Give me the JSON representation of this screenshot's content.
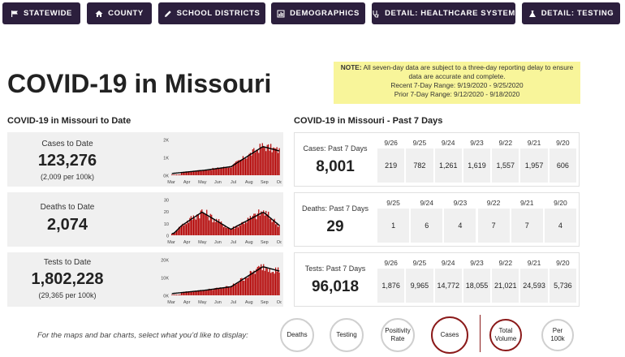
{
  "nav": [
    {
      "label": "STATEWIDE",
      "icon": "flag-icon"
    },
    {
      "label": "COUNTY",
      "icon": "home-icon"
    },
    {
      "label": "SCHOOL DISTRICTS",
      "icon": "pencil-icon"
    },
    {
      "label": "DEMOGRAPHICS",
      "icon": "bar-chart-icon"
    },
    {
      "label": "DETAIL: HEALTHCARE SYSTEM",
      "icon": "stethoscope-icon"
    },
    {
      "label": "DETAIL: TESTING",
      "icon": "flask-icon"
    }
  ],
  "note": {
    "prefix": "NOTE:",
    "line1": " All seven-day data are subject to a three-day reporting delay to ensure",
    "line2": "data are accurate and complete.",
    "line3": "Recent 7-Day Range: 9/19/2020 -  9/25/2020",
    "line4": "Prior 7-Day Range:  9/12/2020 - 9/18/2020"
  },
  "title": "COVID-19 in Missouri",
  "todate": {
    "heading": "COVID-19 in Missouri to Date",
    "cards": [
      {
        "label": "Cases to Date",
        "value": "123,276",
        "sub": "(2,009 per 100k)",
        "yticks": [
          "2K",
          "1K",
          "0K"
        ],
        "ymax": 2000,
        "peak": 1.0
      },
      {
        "label": "Deaths to Date",
        "value": "2,074",
        "sub": "",
        "yticks": [
          "30",
          "20",
          "10",
          "0"
        ],
        "ymax": 30,
        "peak": 0.6
      },
      {
        "label": "Tests to Date",
        "value": "1,802,228",
        "sub": "(29,365 per 100k)",
        "yticks": [
          "20K",
          "10K",
          "0K"
        ],
        "ymax": 20000,
        "peak": 1.0
      }
    ],
    "months": [
      "Mar",
      "Apr",
      "May",
      "Jun",
      "Jul",
      "Aug",
      "Sep",
      "Oct"
    ]
  },
  "past7": {
    "heading": "COVID-19 in Missouri - Past 7 Days",
    "cards": [
      {
        "label": "Cases: Past 7 Days",
        "value": "8,001",
        "dates": [
          "9/26",
          "9/25",
          "9/24",
          "9/23",
          "9/22",
          "9/21",
          "9/20"
        ],
        "values": [
          "219",
          "782",
          "1,261",
          "1,619",
          "1,557",
          "1,957",
          "606"
        ]
      },
      {
        "label": "Deaths: Past 7 Days",
        "value": "29",
        "dates": [
          "9/25",
          "9/24",
          "9/23",
          "9/22",
          "9/21",
          "9/20"
        ],
        "values": [
          "1",
          "6",
          "4",
          "7",
          "7",
          "4"
        ]
      },
      {
        "label": "Tests: Past 7 Days",
        "value": "96,018",
        "dates": [
          "9/26",
          "9/25",
          "9/24",
          "9/23",
          "9/22",
          "9/21",
          "9/20"
        ],
        "values": [
          "1,876",
          "9,965",
          "14,772",
          "18,055",
          "21,021",
          "24,593",
          "5,736"
        ]
      }
    ]
  },
  "selector": {
    "prompt": "For the maps and bar charts, select what you’d like to display:",
    "metrics": [
      {
        "label": "Deaths",
        "selected": false
      },
      {
        "label": "Testing",
        "selected": false
      },
      {
        "label": "Positivity Rate",
        "selected": false
      },
      {
        "label": "Cases",
        "selected": true
      }
    ],
    "modes": [
      {
        "label": "Total Volume",
        "selected": true
      },
      {
        "label": "Per 100k",
        "selected": false
      }
    ]
  },
  "colors": {
    "nav_bg": "#2c1f3d",
    "bar": "#b30000",
    "line": "#000000",
    "note_bg": "#f8f59a",
    "selected_ring": "#8b1a1a"
  }
}
